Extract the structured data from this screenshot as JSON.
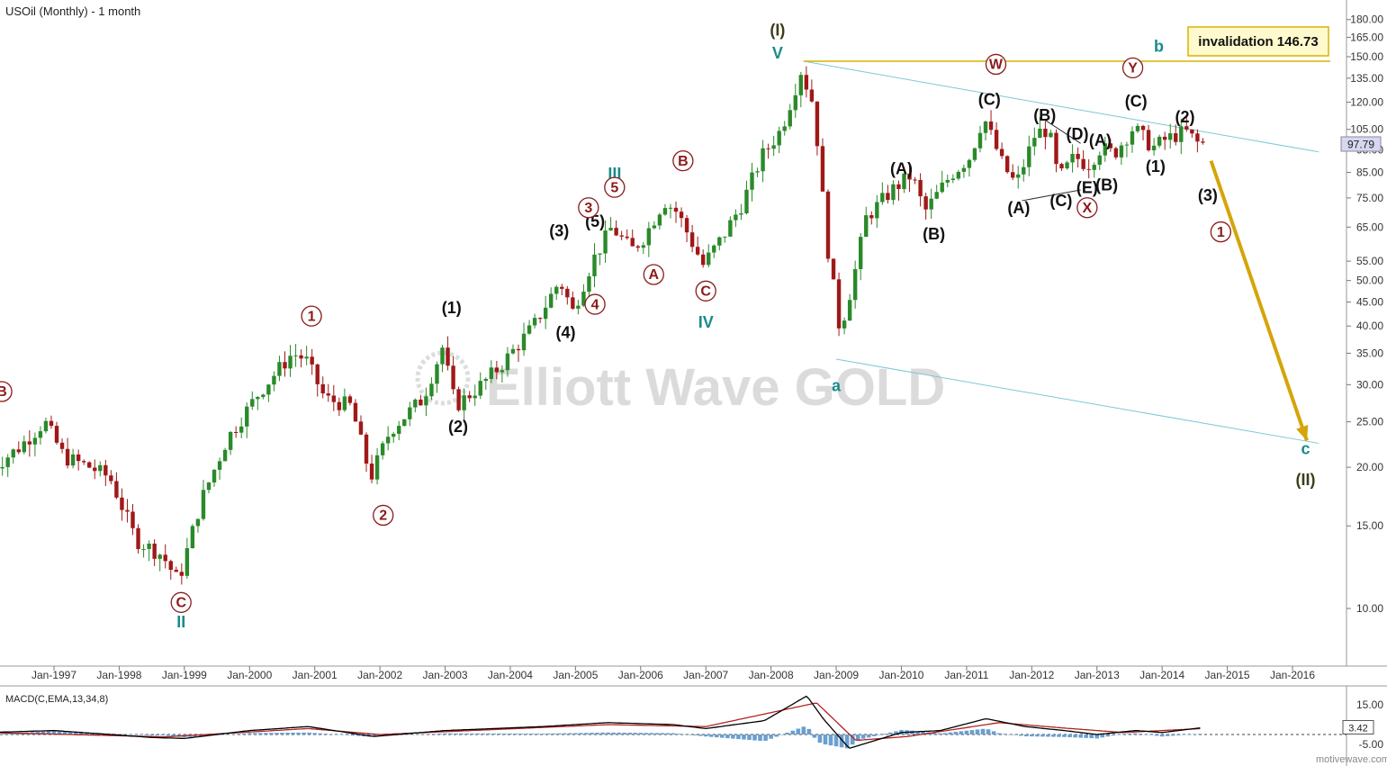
{
  "chart_data": {
    "type": "candlestick",
    "title": "USOil (Monthly) - 1 month",
    "scale": "log",
    "ylim": [
      8,
      190
    ],
    "y_ticks": [
      "180.00",
      "165.00",
      "150.00",
      "135.00",
      "120.00",
      "105.00",
      "95.00",
      "85.00",
      "75.00",
      "65.00",
      "55.00",
      "50.00",
      "45.00",
      "40.00",
      "35.00",
      "30.00",
      "25.00",
      "20.00",
      "15.00",
      "10.00"
    ],
    "x_ticks": [
      "Jan-1997",
      "Jan-1998",
      "Jan-1999",
      "Jan-2000",
      "Jan-2001",
      "Jan-2002",
      "Jan-2003",
      "Jan-2004",
      "Jan-2005",
      "Jan-2006",
      "Jan-2007",
      "Jan-2008",
      "Jan-2009",
      "Jan-2010",
      "Jan-2011",
      "Jan-2012",
      "Jan-2013",
      "Jan-2014",
      "Jan-2015",
      "Jan-2016"
    ],
    "x_range": [
      1996.0,
      2016.6
    ],
    "current_price": "97.79",
    "invalidation_label": "invalidation 146.73",
    "invalidation_price": 146.73,
    "price_path": [
      [
        1996.0,
        19.5
      ],
      [
        1996.5,
        22
      ],
      [
        1996.9,
        25
      ],
      [
        1997.2,
        21
      ],
      [
        1997.6,
        20
      ],
      [
        1997.9,
        19
      ],
      [
        1998.3,
        14
      ],
      [
        1998.7,
        13
      ],
      [
        1998.95,
        11.4
      ],
      [
        1999.3,
        17
      ],
      [
        1999.7,
        23
      ],
      [
        2000.2,
        29
      ],
      [
        2000.7,
        35
      ],
      [
        2000.9,
        34
      ],
      [
        2001.2,
        28
      ],
      [
        2001.6,
        27
      ],
      [
        2001.9,
        19
      ],
      [
        2002.2,
        24
      ],
      [
        2002.7,
        28
      ],
      [
        2003.0,
        36
      ],
      [
        2003.2,
        27
      ],
      [
        2003.6,
        30
      ],
      [
        2003.9,
        33
      ],
      [
        2004.4,
        40
      ],
      [
        2004.8,
        50
      ],
      [
        2005.0,
        43
      ],
      [
        2005.3,
        55
      ],
      [
        2005.6,
        65
      ],
      [
        2005.9,
        58
      ],
      [
        2006.1,
        62
      ],
      [
        2006.4,
        74
      ],
      [
        2006.6,
        70
      ],
      [
        2007.0,
        54
      ],
      [
        2007.3,
        62
      ],
      [
        2007.6,
        73
      ],
      [
        2007.9,
        92
      ],
      [
        2008.2,
        105
      ],
      [
        2008.5,
        140
      ],
      [
        2008.7,
        118
      ],
      [
        2008.9,
        60
      ],
      [
        2009.1,
        39
      ],
      [
        2009.3,
        50
      ],
      [
        2009.5,
        68
      ],
      [
        2009.9,
        78
      ],
      [
        2010.2,
        84
      ],
      [
        2010.4,
        70
      ],
      [
        2010.8,
        84
      ],
      [
        2011.1,
        92
      ],
      [
        2011.3,
        112
      ],
      [
        2011.6,
        88
      ],
      [
        2011.8,
        80
      ],
      [
        2012.1,
        103
      ],
      [
        2012.3,
        105
      ],
      [
        2012.45,
        82
      ],
      [
        2012.7,
        92
      ],
      [
        2012.9,
        88
      ],
      [
        2013.1,
        96
      ],
      [
        2013.3,
        93
      ],
      [
        2013.6,
        106
      ],
      [
        2013.9,
        96
      ],
      [
        2014.1,
        100
      ],
      [
        2014.4,
        104
      ],
      [
        2014.6,
        97.79
      ]
    ],
    "series": [
      {
        "name": "MACD(C,EMA,13,34,8)",
        "kind": "macd_line",
        "color": "#000000"
      },
      {
        "name": "",
        "kind": "signal_line",
        "color": "#b22222"
      },
      {
        "name": "",
        "kind": "histogram",
        "color": "#6a9fcf"
      }
    ],
    "macd_label": "MACD(C,EMA,13,34,8)",
    "macd_ticks": [
      "15.00",
      "-5.00"
    ],
    "macd_current": "3.42",
    "macd_line": [
      [
        1996.0,
        1
      ],
      [
        1997.0,
        2
      ],
      [
        1998.5,
        -1.5
      ],
      [
        1999.0,
        -2
      ],
      [
        2000.0,
        2
      ],
      [
        2000.9,
        4
      ],
      [
        2001.9,
        -1
      ],
      [
        2003.0,
        2
      ],
      [
        2004.5,
        4
      ],
      [
        2005.5,
        6
      ],
      [
        2006.5,
        5
      ],
      [
        2007.0,
        3
      ],
      [
        2007.9,
        7
      ],
      [
        2008.55,
        19.5
      ],
      [
        2008.8,
        8
      ],
      [
        2009.2,
        -7
      ],
      [
        2009.5,
        -4
      ],
      [
        2010.0,
        1
      ],
      [
        2010.6,
        2
      ],
      [
        2011.3,
        8
      ],
      [
        2011.9,
        4
      ],
      [
        2012.5,
        2
      ],
      [
        2013.0,
        0
      ],
      [
        2013.6,
        2
      ],
      [
        2014.0,
        1
      ],
      [
        2014.6,
        3.4
      ]
    ],
    "signal_line": [
      [
        1996.0,
        1
      ],
      [
        1998.7,
        -1.2
      ],
      [
        2000.9,
        3
      ],
      [
        2002.0,
        0
      ],
      [
        2005.5,
        5
      ],
      [
        2007.0,
        4
      ],
      [
        2008.7,
        16
      ],
      [
        2009.3,
        -3
      ],
      [
        2010.1,
        -1
      ],
      [
        2011.5,
        6
      ],
      [
        2012.6,
        3
      ],
      [
        2013.4,
        1
      ],
      [
        2014.6,
        3
      ]
    ],
    "wave_labels": [
      {
        "t": "(I)",
        "x": 2008.1,
        "y": 170,
        "c": "#3d3d1a"
      },
      {
        "t": "V",
        "x": 2008.1,
        "y": 152,
        "c": "#1b8a8a"
      },
      {
        "t": "b",
        "x": 2013.95,
        "y": 157,
        "c": "#1b8a8a"
      },
      {
        "t": "c",
        "x": 2016.2,
        "y": 21.8,
        "c": "#1b8a8a"
      },
      {
        "t": "(II)",
        "x": 2016.2,
        "y": 18.7,
        "c": "#3d3d1a"
      },
      {
        "t": "a",
        "x": 2009.0,
        "y": 29.7,
        "c": "#1b8a8a"
      },
      {
        "t": "III",
        "x": 2005.6,
        "y": 84,
        "c": "#1b8a8a"
      },
      {
        "t": "IV",
        "x": 2007.0,
        "y": 40.5,
        "c": "#1b8a8a"
      },
      {
        "t": "II",
        "x": 1998.95,
        "y": 9.3,
        "c": "#1b8a8a"
      },
      {
        "t": "(1)",
        "x": 2003.1,
        "y": 43.5,
        "c": "#111"
      },
      {
        "t": "(2)",
        "x": 2003.2,
        "y": 24.3,
        "c": "#111"
      },
      {
        "t": "(3)",
        "x": 2004.75,
        "y": 63.5,
        "c": "#111"
      },
      {
        "t": "(4)",
        "x": 2004.85,
        "y": 38.5,
        "c": "#111"
      },
      {
        "t": "(5)",
        "x": 2005.3,
        "y": 66.5,
        "c": "#111"
      },
      {
        "t": "(A)",
        "x": 2010.0,
        "y": 86,
        "c": "#111"
      },
      {
        "t": "(B)",
        "x": 2010.5,
        "y": 62.5,
        "c": "#111"
      },
      {
        "t": "(C)",
        "x": 2011.35,
        "y": 121,
        "c": "#111"
      },
      {
        "t": "(A)",
        "x": 2011.8,
        "y": 71,
        "c": "#111"
      },
      {
        "t": "(B)",
        "x": 2012.2,
        "y": 112,
        "c": "#111"
      },
      {
        "t": "(C)",
        "x": 2012.45,
        "y": 73.5,
        "c": "#111"
      },
      {
        "t": "(D)",
        "x": 2012.7,
        "y": 102,
        "c": "#111"
      },
      {
        "t": "(E)",
        "x": 2012.85,
        "y": 78.5,
        "c": "#111"
      },
      {
        "t": "(A)",
        "x": 2013.05,
        "y": 99,
        "c": "#111"
      },
      {
        "t": "(B)",
        "x": 2013.15,
        "y": 79.5,
        "c": "#111"
      },
      {
        "t": "(C)",
        "x": 2013.6,
        "y": 120,
        "c": "#111"
      },
      {
        "t": "(1)",
        "x": 2013.9,
        "y": 87,
        "c": "#111"
      },
      {
        "t": "(2)",
        "x": 2014.35,
        "y": 111,
        "c": "#111"
      },
      {
        "t": "(3)",
        "x": 2014.7,
        "y": 75.5,
        "c": "#111"
      }
    ],
    "circled_labels": [
      {
        "t": "B",
        "x": 1996.2,
        "y": 29.0
      },
      {
        "t": "C",
        "x": 1998.95,
        "y": 10.3
      },
      {
        "t": "1",
        "x": 2000.95,
        "y": 42.0
      },
      {
        "t": "2",
        "x": 2002.05,
        "y": 15.8
      },
      {
        "t": "3",
        "x": 2005.2,
        "y": 71.5
      },
      {
        "t": "5",
        "x": 2005.6,
        "y": 79.0
      },
      {
        "t": "4",
        "x": 2005.3,
        "y": 44.5
      },
      {
        "t": "A",
        "x": 2006.2,
        "y": 51.5
      },
      {
        "t": "B",
        "x": 2006.65,
        "y": 90.0
      },
      {
        "t": "C",
        "x": 2007.0,
        "y": 47.5
      },
      {
        "t": "W",
        "x": 2011.45,
        "y": 144.5
      },
      {
        "t": "X",
        "x": 2012.85,
        "y": 71.5
      },
      {
        "t": "Y",
        "x": 2013.55,
        "y": 142.0
      },
      {
        "t": "1",
        "x": 2014.9,
        "y": 63.5
      }
    ]
  }
}
